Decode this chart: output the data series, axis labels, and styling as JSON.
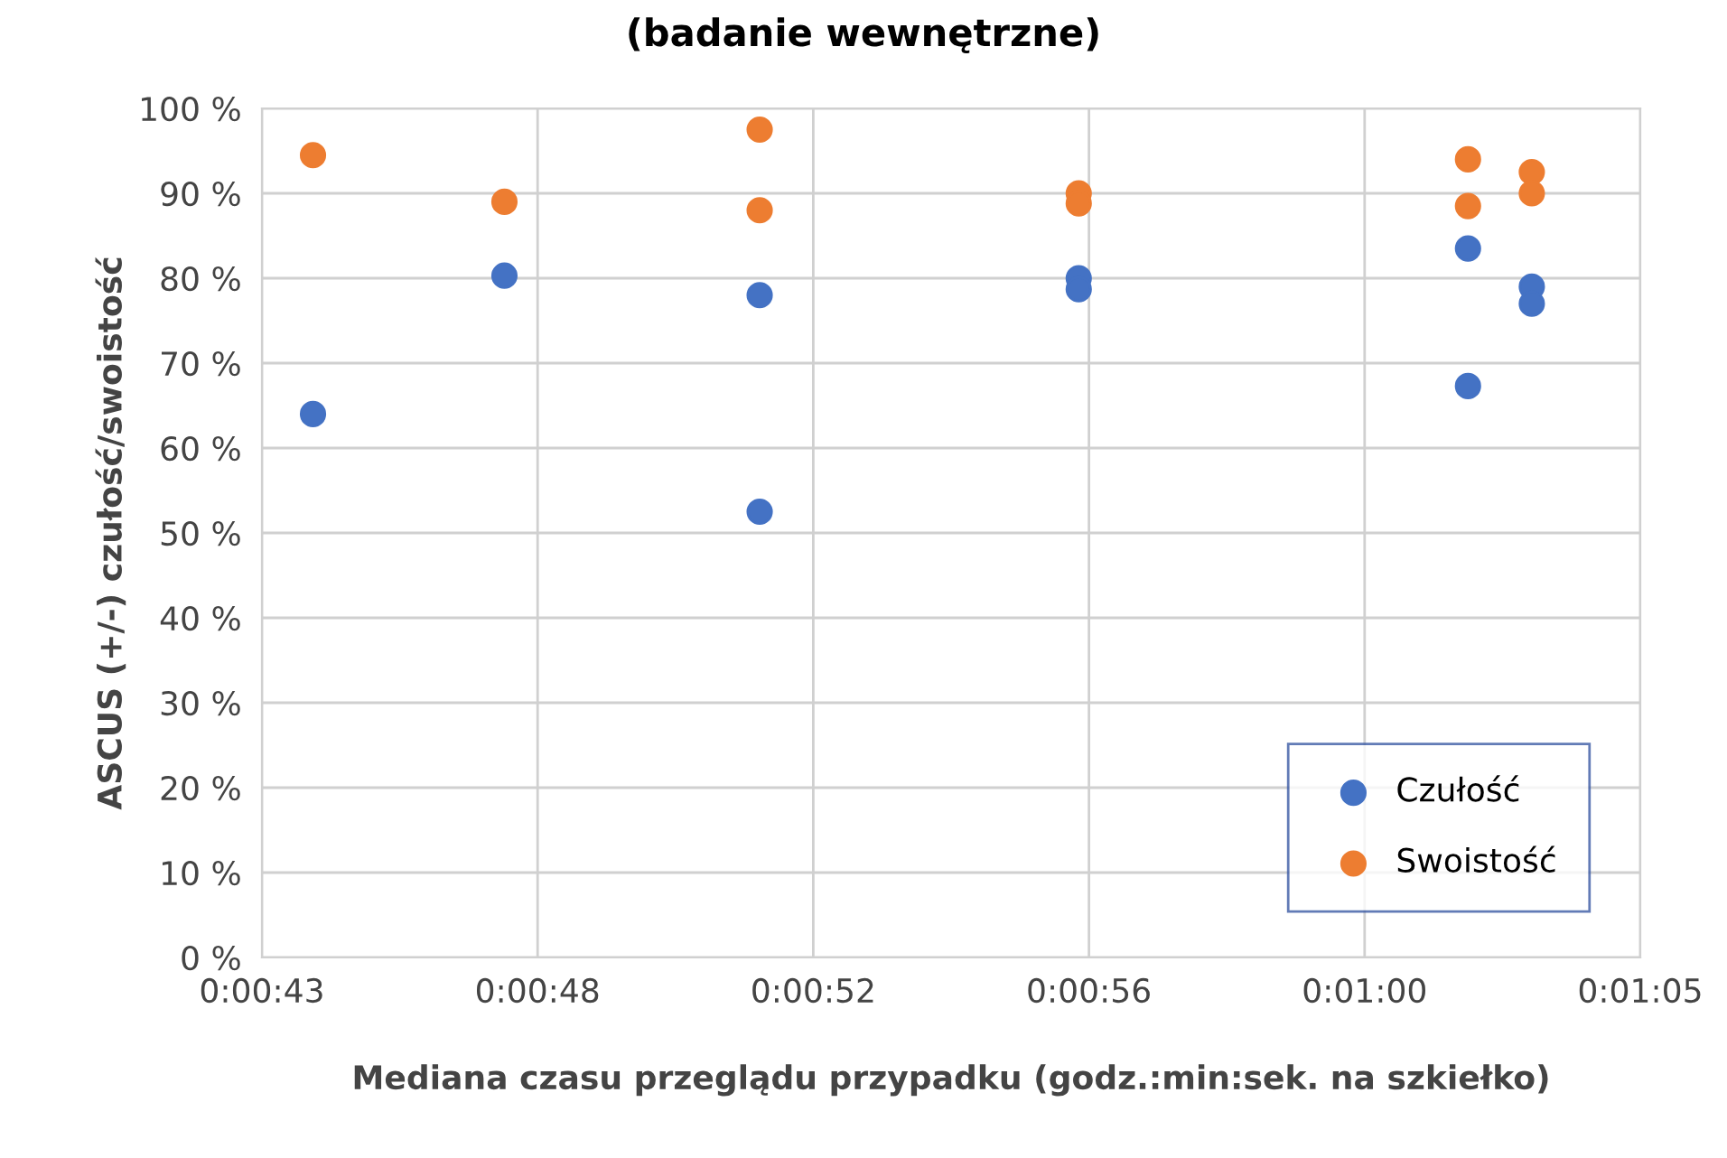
{
  "chart_data": {
    "type": "scatter",
    "title": "(badanie wewnętrzne)",
    "xlabel": "Mediana czasu przeglądu przypadku (godz.:min:sek. na szkiełko)",
    "ylabel": "ASCUS (+/-) czułość/swoistość",
    "series": [
      {
        "name": "Czułość",
        "color": "#4472c4",
        "x": [
          44.0,
          47.0,
          51.0,
          51.0,
          56.0,
          56.0,
          62.1,
          62.1,
          63.1,
          63.1
        ],
        "values": [
          64,
          80.3,
          78,
          52.5,
          80,
          78.7,
          83.5,
          67.3,
          79,
          77
        ]
      },
      {
        "name": "Swoistość",
        "color": "#ed7d31",
        "x": [
          44.0,
          47.0,
          51.0,
          51.0,
          56.0,
          56.0,
          62.1,
          62.1,
          63.1,
          63.1
        ],
        "values": [
          94.5,
          89,
          97.5,
          88,
          90,
          88.8,
          94,
          88.5,
          92.5,
          90
        ]
      }
    ],
    "xlim": [
      43.2,
      64.8
    ],
    "xticks": [
      {
        "value": 43.2,
        "label": "0:00:43"
      },
      {
        "value": 47.52,
        "label": "0:00:48"
      },
      {
        "value": 51.84,
        "label": "0:00:52"
      },
      {
        "value": 56.16,
        "label": "0:00:56"
      },
      {
        "value": 60.48,
        "label": "0:01:00"
      },
      {
        "value": 64.8,
        "label": "0:01:05"
      }
    ],
    "ylim": [
      0,
      100
    ],
    "yticks": [
      {
        "value": 0,
        "label": "0 %"
      },
      {
        "value": 10,
        "label": "10 %"
      },
      {
        "value": 20,
        "label": "20 %"
      },
      {
        "value": 30,
        "label": "30 %"
      },
      {
        "value": 40,
        "label": "40 %"
      },
      {
        "value": 50,
        "label": "50 %"
      },
      {
        "value": 60,
        "label": "60 %"
      },
      {
        "value": 70,
        "label": "70 %"
      },
      {
        "value": 80,
        "label": "80 %"
      },
      {
        "value": 90,
        "label": "90 %"
      },
      {
        "value": 100,
        "label": "100 %"
      }
    ],
    "grid": true,
    "legend": "bottom right",
    "marker": "circle"
  }
}
